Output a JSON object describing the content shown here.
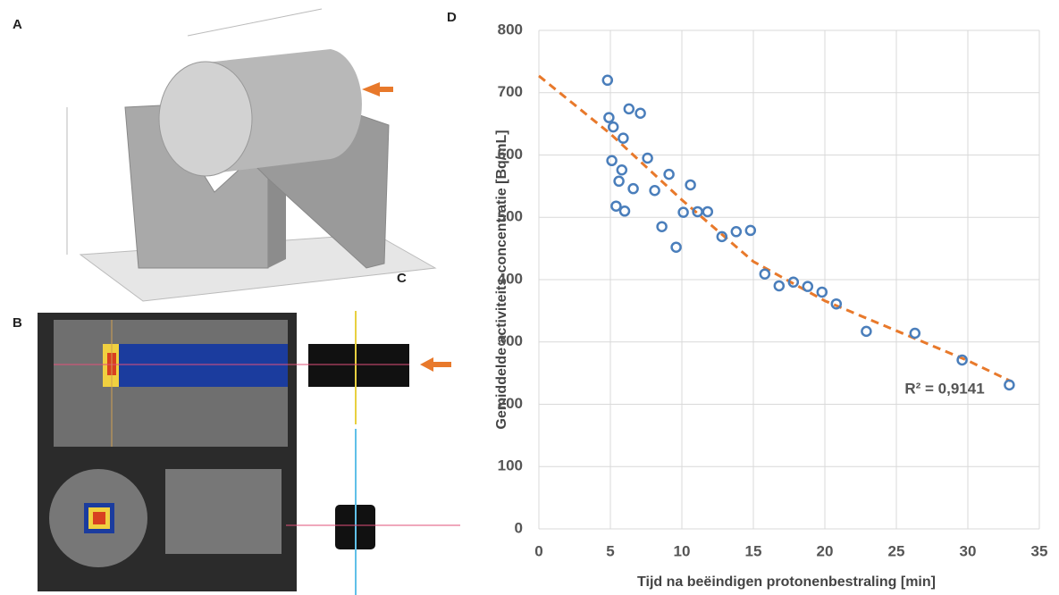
{
  "panels": [
    "A",
    "B",
    "C",
    "D"
  ],
  "chart_data": {
    "type": "scatter",
    "x_label": "Tijd na beëindigen protonenbestraling [min]",
    "y_label": "Gemiddelde activiteits-concentratie [Bq/mL]",
    "annotation": "R² = 0,9141",
    "x": [
      4.8,
      4.9,
      5.2,
      5.9,
      6.3,
      7.1,
      5.1,
      5.8,
      5.6,
      6.6,
      7.6,
      9.1,
      8.1,
      10.6,
      10.1,
      11.1,
      11.8,
      8.6,
      9.6,
      5.4,
      6.0,
      12.8,
      13.8,
      14.8,
      15.8,
      16.8,
      17.8,
      18.8,
      19.8,
      20.8,
      22.9,
      26.3,
      29.6,
      32.9
    ],
    "values": [
      720,
      660,
      645,
      627,
      674,
      667,
      591,
      576,
      558,
      546,
      595,
      569,
      543,
      552,
      508,
      509,
      509,
      485,
      452,
      518,
      510,
      469,
      477,
      479,
      409,
      390,
      396,
      389,
      380,
      361,
      317,
      314,
      271,
      231
    ],
    "color": "#4a7ebb",
    "trendline": {
      "x": [
        0,
        5,
        10,
        15,
        20,
        25,
        30,
        33
      ],
      "values": [
        727,
        634,
        528,
        429,
        366,
        318,
        270,
        237
      ],
      "color": "#e8792b"
    },
    "xlim": [
      0,
      35
    ],
    "xticks": [
      0,
      5,
      10,
      15,
      20,
      25,
      30,
      35
    ],
    "ylim": [
      0,
      800
    ],
    "yticks": [
      0,
      100,
      200,
      300,
      400,
      500,
      600,
      700,
      800
    ],
    "grid": true
  }
}
